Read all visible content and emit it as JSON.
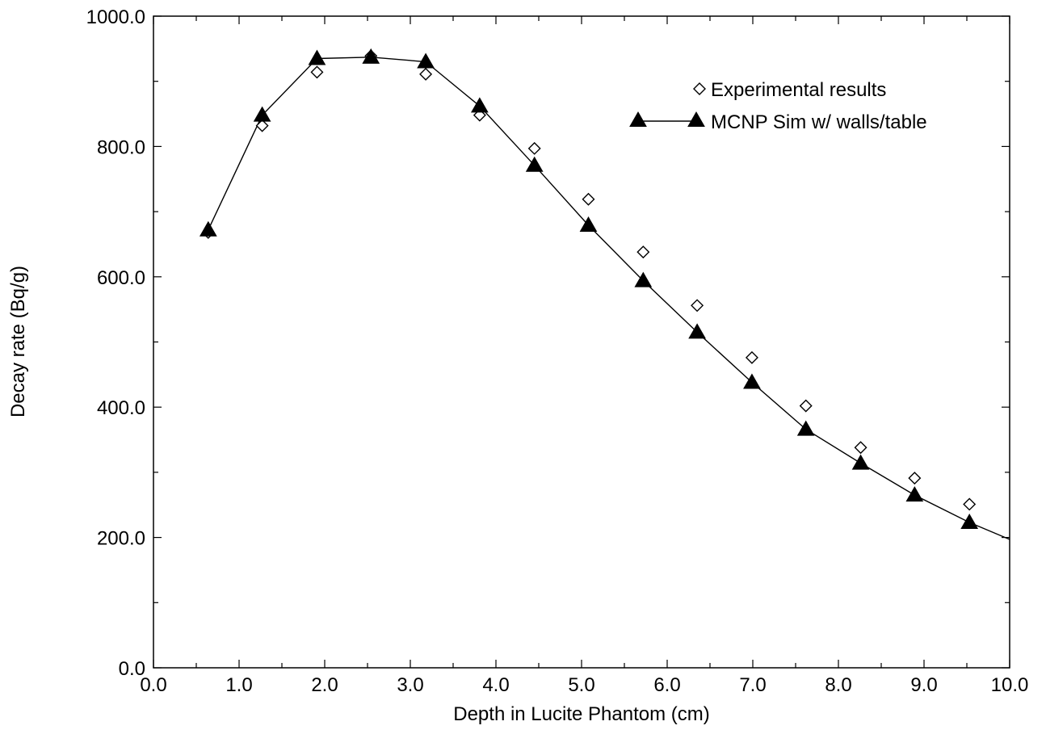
{
  "chart_data": {
    "type": "line",
    "xlabel": "Depth in Lucite Phantom (cm)",
    "ylabel": "Decay rate (Bq/g)",
    "xlim": [
      0,
      10
    ],
    "ylim": [
      0,
      1000
    ],
    "x_ticks": [
      "0.0",
      "1.0",
      "2.0",
      "3.0",
      "4.0",
      "5.0",
      "6.0",
      "7.0",
      "8.0",
      "9.0",
      "10.0"
    ],
    "y_ticks": [
      "0.0",
      "200.0",
      "400.0",
      "600.0",
      "800.0",
      "1000.0"
    ],
    "grid": false,
    "legend_position": "top-right",
    "series": [
      {
        "name": "Experimental results",
        "marker": "open-diamond",
        "line": false,
        "color": "#000000",
        "x": [
          0.64,
          1.27,
          1.91,
          2.54,
          3.18,
          3.81,
          4.45,
          5.08,
          5.72,
          6.35,
          6.99,
          7.62,
          8.26,
          8.89,
          9.53
        ],
        "y": [
          668,
          832,
          914,
          939,
          911,
          848,
          797,
          719,
          638,
          556,
          476,
          402,
          338,
          291,
          251
        ]
      },
      {
        "name": "MCNP Sim w/ walls/table",
        "marker": "filled-triangle",
        "line": true,
        "color": "#000000",
        "x": [
          0.64,
          1.27,
          1.91,
          2.54,
          3.18,
          3.81,
          4.45,
          5.08,
          5.72,
          6.35,
          6.99,
          7.62,
          8.26,
          8.89,
          9.53,
          10.0
        ],
        "y": [
          672,
          848,
          935,
          937,
          930,
          862,
          771,
          679,
          594,
          515,
          438,
          366,
          314,
          265,
          223,
          197
        ]
      }
    ]
  }
}
